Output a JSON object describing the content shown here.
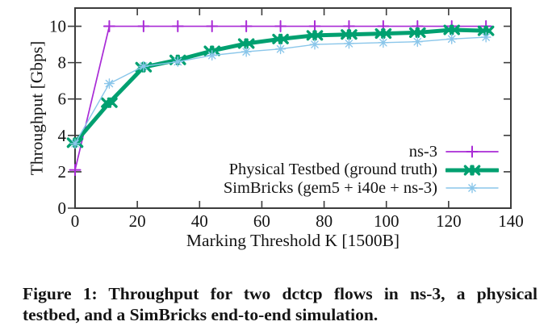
{
  "figure": {
    "caption_line1": "Figure 1: Throughput for two dctcp flows in ns-3, a physical",
    "caption_line2": "testbed, and a SimBricks end-to-end simulation."
  },
  "chart_data": {
    "type": "line",
    "title": "",
    "xlabel": "Marking Threshold K [1500B]",
    "ylabel": "Throughput [Gbps]",
    "xlim": [
      0,
      140
    ],
    "ylim": [
      0,
      11
    ],
    "xticks": [
      0,
      20,
      40,
      60,
      80,
      100,
      120,
      140
    ],
    "yticks": [
      0,
      2,
      4,
      6,
      8,
      10
    ],
    "grid": false,
    "legend_position": "inside-bottom-right",
    "axis_color": "#3c3c3c",
    "text_color": "#141414",
    "x": [
      0,
      11,
      22,
      33,
      44,
      55,
      66,
      77,
      88,
      99,
      110,
      121,
      132
    ],
    "series": [
      {
        "name": "ns-3",
        "color": "#A92BD6",
        "marker": "plus",
        "line_width": 1.7,
        "values": [
          2.1,
          10,
          10,
          10,
          10,
          10,
          10,
          10,
          10,
          10,
          10,
          10,
          10
        ]
      },
      {
        "name": "Physical Testbed (ground truth)",
        "color": "#00A070",
        "marker": "double-x",
        "line_width": 5,
        "values": [
          3.6,
          5.8,
          7.75,
          8.15,
          8.65,
          9.05,
          9.3,
          9.5,
          9.55,
          9.6,
          9.65,
          9.8,
          9.75
        ]
      },
      {
        "name": "SimBricks (gem5 + i40e + ns-3)",
        "color": "#8AC6EA",
        "marker": "asterisk",
        "line_width": 1.4,
        "values": [
          3.55,
          6.85,
          7.8,
          8.05,
          8.4,
          8.6,
          8.75,
          9.0,
          9.05,
          9.1,
          9.15,
          9.3,
          9.4
        ]
      }
    ]
  }
}
